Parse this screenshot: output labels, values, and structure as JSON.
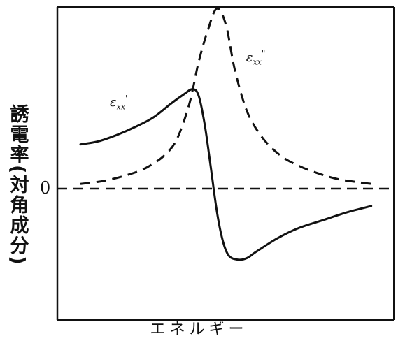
{
  "chart_data": {
    "type": "line",
    "title": "",
    "xlabel": "エネルギー",
    "ylabel": "誘電率(対角成分)",
    "xlim": [
      0,
      10
    ],
    "ylim": [
      -1.2,
      2.2
    ],
    "grid": false,
    "baseline": {
      "y": 0,
      "label": "0",
      "style": "dashed"
    },
    "series": [
      {
        "name": "εxx'",
        "style": "solid",
        "label_at": [
          1.2,
          1.08
        ],
        "x": [
          0.0,
          0.6,
          1.2,
          1.8,
          2.4,
          3.0,
          3.4,
          3.7,
          3.9,
          4.1,
          4.3,
          4.5,
          4.7,
          4.9,
          5.2,
          5.5,
          5.8,
          6.5,
          7.2,
          8.0,
          8.8,
          9.6
        ],
        "y": [
          0.56,
          0.6,
          0.68,
          0.78,
          0.9,
          1.08,
          1.19,
          1.26,
          1.18,
          0.82,
          0.28,
          -0.28,
          -0.66,
          -0.85,
          -0.9,
          -0.88,
          -0.8,
          -0.63,
          -0.5,
          -0.4,
          -0.3,
          -0.22
        ]
      },
      {
        "name": "εxx\"",
        "style": "dashed",
        "label_at": [
          5.7,
          1.65
        ],
        "x": [
          0.0,
          0.8,
          1.6,
          2.2,
          2.8,
          3.2,
          3.6,
          3.9,
          4.2,
          4.5,
          4.8,
          5.1,
          5.5,
          6.0,
          6.6,
          7.2,
          7.8,
          8.5,
          9.2,
          9.6
        ],
        "y": [
          0.06,
          0.1,
          0.18,
          0.27,
          0.43,
          0.64,
          1.08,
          1.6,
          2.0,
          2.28,
          2.08,
          1.5,
          0.98,
          0.65,
          0.42,
          0.29,
          0.2,
          0.12,
          0.08,
          0.06
        ]
      }
    ]
  }
}
